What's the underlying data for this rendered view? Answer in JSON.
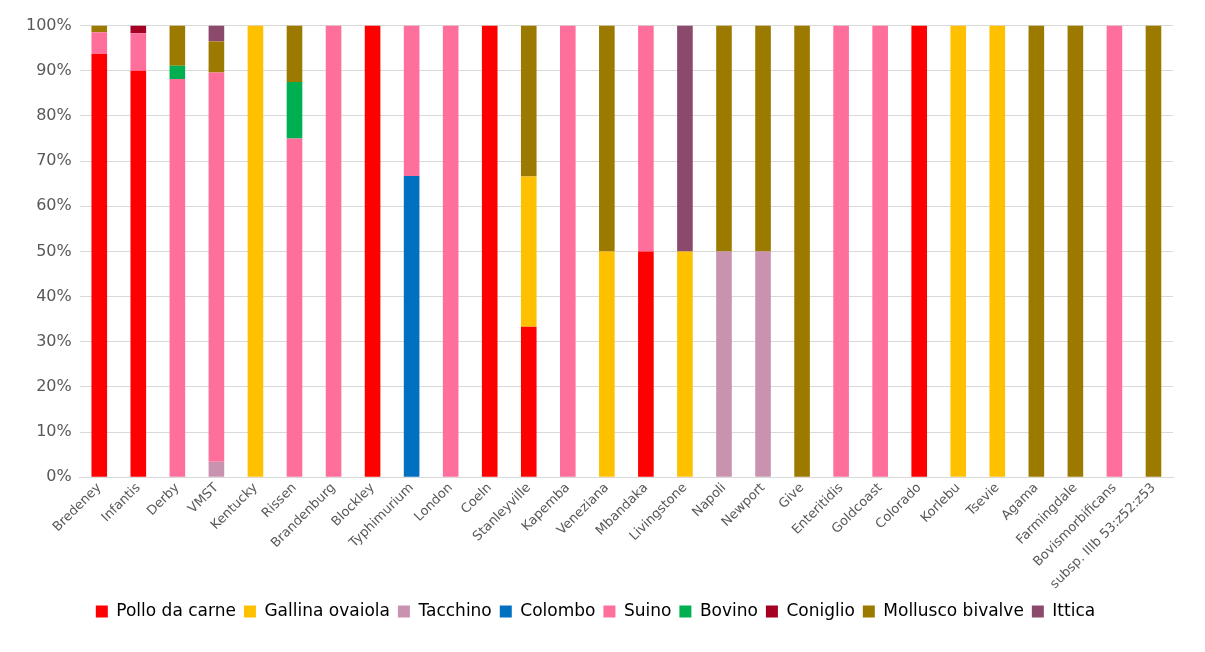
{
  "chart_data": {
    "type": "bar",
    "stacked": true,
    "categories": [
      "Bredeney",
      "Infantis",
      "Derby",
      "VMST",
      "Kentucky",
      "Rissen",
      "Brandenburg",
      "Blockley",
      "Typhimurium",
      "London",
      "Coeln",
      "Stanleyville",
      "Kapemba",
      "Veneziana",
      "Mbandaka",
      "Livingstone",
      "Napoli",
      "Newport",
      "Give",
      "Enteritidis",
      "Goldcoast",
      "Colorado",
      "Korlebu",
      "Tsevie",
      "Agama",
      "Farmingdale",
      "Bovismorbificans",
      "subsp. IIIb 53:z52:z53"
    ],
    "series": [
      {
        "name": "Pollo da carne",
        "color": "#ff0000",
        "values": [
          93.7,
          90,
          null,
          null,
          null,
          null,
          null,
          100,
          null,
          null,
          100,
          33.3,
          null,
          null,
          50,
          null,
          null,
          null,
          null,
          null,
          null,
          100,
          null,
          null,
          null,
          null,
          null,
          null
        ]
      },
      {
        "name": "Gallina ovaiola",
        "color": "#ffc000",
        "values": [
          null,
          null,
          null,
          null,
          100,
          null,
          null,
          null,
          null,
          null,
          null,
          33.3,
          null,
          50,
          null,
          50,
          null,
          null,
          null,
          null,
          null,
          null,
          100,
          100,
          null,
          null,
          null,
          null
        ]
      },
      {
        "name": "Tacchino",
        "color": "#c993b0",
        "values": [
          null,
          null,
          null,
          3.4,
          null,
          null,
          null,
          null,
          null,
          null,
          null,
          null,
          null,
          null,
          null,
          null,
          50,
          50,
          null,
          null,
          null,
          null,
          null,
          null,
          null,
          null,
          null,
          null
        ]
      },
      {
        "name": "Colombo",
        "color": "#0070c0",
        "values": [
          null,
          null,
          null,
          null,
          null,
          null,
          null,
          null,
          66.7,
          null,
          null,
          null,
          null,
          null,
          null,
          null,
          null,
          null,
          null,
          null,
          null,
          null,
          null,
          null,
          null,
          null,
          null,
          null
        ]
      },
      {
        "name": "Suino",
        "color": "#ff6f9c",
        "values": [
          4.8,
          8.3,
          88.2,
          86.2,
          null,
          75,
          100,
          null,
          33.3,
          100,
          null,
          null,
          100,
          null,
          50,
          null,
          null,
          null,
          null,
          100,
          100,
          null,
          null,
          null,
          null,
          null,
          100,
          null
        ]
      },
      {
        "name": "Bovino",
        "color": "#00b050",
        "values": [
          null,
          null,
          2.9,
          null,
          null,
          12.5,
          null,
          null,
          null,
          null,
          null,
          null,
          null,
          null,
          null,
          null,
          null,
          null,
          null,
          null,
          null,
          null,
          null,
          null,
          null,
          null,
          null,
          null
        ]
      },
      {
        "name": "Coniglio",
        "color": "#a50021",
        "values": [
          null,
          1.7,
          null,
          null,
          null,
          null,
          null,
          null,
          null,
          null,
          null,
          null,
          null,
          null,
          null,
          null,
          null,
          null,
          null,
          null,
          null,
          null,
          null,
          null,
          null,
          null,
          null,
          null
        ]
      },
      {
        "name": "Mollusco bivalve",
        "color": "#9c7a00",
        "values": [
          1.5,
          null,
          8.9,
          6.9,
          null,
          12.5,
          null,
          null,
          null,
          null,
          null,
          33.4,
          null,
          50,
          null,
          null,
          50,
          50,
          100,
          null,
          null,
          null,
          null,
          null,
          100,
          100,
          null,
          100
        ]
      },
      {
        "name": "Ittica",
        "color": "#8b4a6b",
        "values": [
          null,
          null,
          null,
          3.5,
          null,
          null,
          null,
          null,
          null,
          null,
          null,
          null,
          null,
          null,
          null,
          50,
          null,
          null,
          null,
          null,
          null,
          null,
          null,
          null,
          null,
          null,
          null,
          null
        ]
      }
    ],
    "ylim": [
      0,
      100
    ],
    "yticks": [
      {
        "value": 0,
        "label": "0%"
      },
      {
        "value": 10,
        "label": "10%"
      },
      {
        "value": 20,
        "label": "20%"
      },
      {
        "value": 30,
        "label": "30%"
      },
      {
        "value": 40,
        "label": "40%"
      },
      {
        "value": 50,
        "label": "50%"
      },
      {
        "value": 60,
        "label": "60%"
      },
      {
        "value": 70,
        "label": "70%"
      },
      {
        "value": 80,
        "label": "80%"
      },
      {
        "value": 90,
        "label": "90%"
      },
      {
        "value": 100,
        "label": "100%"
      }
    ],
    "grid": "y",
    "legend": "bottom"
  }
}
